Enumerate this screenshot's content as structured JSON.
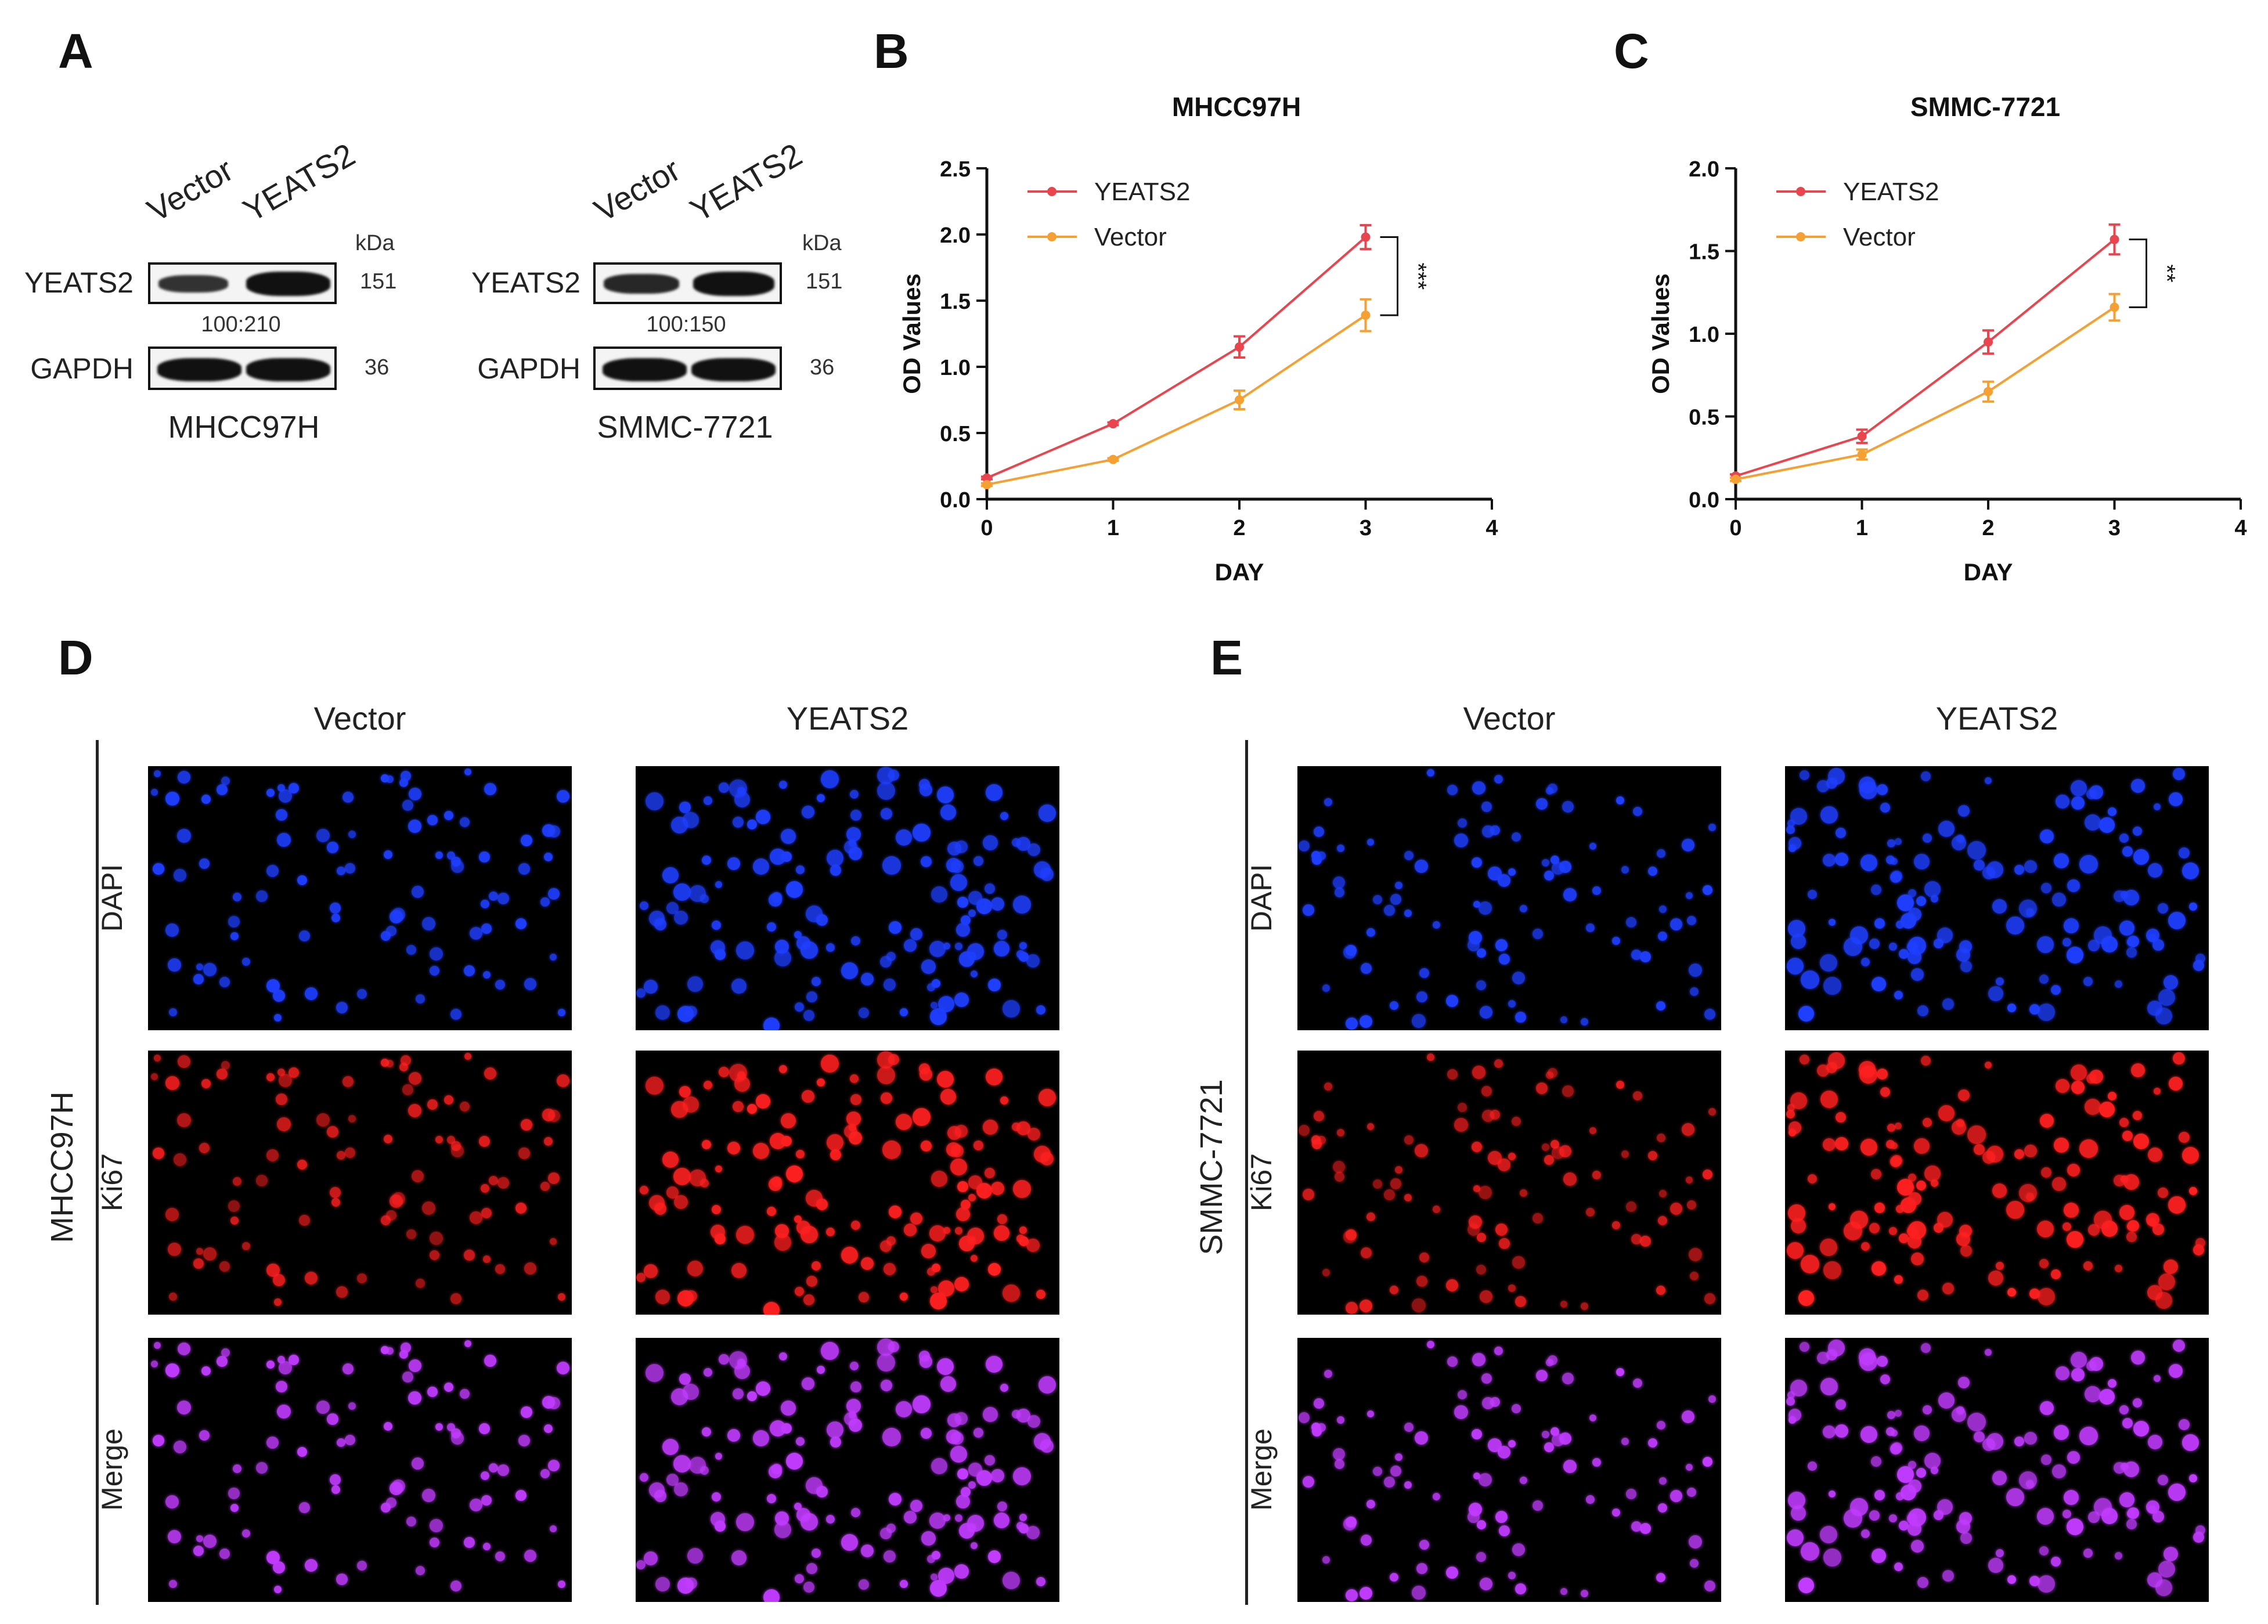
{
  "panel_letters": {
    "a": "A",
    "b": "B",
    "c": "C",
    "d": "D",
    "e": "E"
  },
  "western_blot": {
    "kda_label": "kDa",
    "lanes": [
      "Vector",
      "YEATS2"
    ],
    "rows": [
      {
        "protein": "YEATS2",
        "kda": "151"
      },
      {
        "protein": "GAPDH",
        "kda": "36"
      }
    ],
    "blots": [
      {
        "cell_line": "MHCC97H",
        "ratio": "100:210"
      },
      {
        "cell_line": "SMMC-7721",
        "ratio": "100:150"
      }
    ]
  },
  "chart_data": [
    {
      "type": "line",
      "title": "MHCC97H",
      "xlabel": "DAY",
      "ylabel": "OD Values",
      "xlim": [
        0,
        4
      ],
      "ylim": [
        0,
        2.5
      ],
      "xticks": [
        "0",
        "1",
        "2",
        "3",
        "4"
      ],
      "yticks": [
        "0.0",
        "0.5",
        "1.0",
        "1.5",
        "2.0",
        "2.5"
      ],
      "significance": "***",
      "series": [
        {
          "name": "YEATS2",
          "color": "#e8454f",
          "x": [
            0,
            1,
            2,
            3
          ],
          "y": [
            0.16,
            0.57,
            1.15,
            1.98
          ],
          "err": [
            0.01,
            0.01,
            0.08,
            0.09
          ]
        },
        {
          "name": "Vector",
          "color": "#f5a033",
          "x": [
            0,
            1,
            2,
            3
          ],
          "y": [
            0.11,
            0.3,
            0.75,
            1.39
          ],
          "err": [
            0.01,
            0.01,
            0.07,
            0.12
          ]
        }
      ]
    },
    {
      "type": "line",
      "title": "SMMC-7721",
      "xlabel": "DAY",
      "ylabel": "OD Values",
      "xlim": [
        0,
        4
      ],
      "ylim": [
        0,
        2.0
      ],
      "xticks": [
        "0",
        "1",
        "2",
        "3",
        "4"
      ],
      "yticks": [
        "0.0",
        "0.5",
        "1.0",
        "1.5",
        "2.0"
      ],
      "significance": "**",
      "series": [
        {
          "name": "YEATS2",
          "color": "#e8454f",
          "x": [
            0,
            1,
            2,
            3
          ],
          "y": [
            0.14,
            0.38,
            0.95,
            1.57
          ],
          "err": [
            0.01,
            0.04,
            0.07,
            0.09
          ]
        },
        {
          "name": "Vector",
          "color": "#f5a033",
          "x": [
            0,
            1,
            2,
            3
          ],
          "y": [
            0.12,
            0.27,
            0.65,
            1.16
          ],
          "err": [
            0.01,
            0.03,
            0.06,
            0.08
          ]
        }
      ]
    }
  ],
  "immunofluorescence": {
    "columns": [
      "Vector",
      "YEATS2"
    ],
    "rows": [
      "DAPI",
      "Ki67",
      "Merge"
    ],
    "groups": [
      {
        "cell_line": "MHCC97H"
      },
      {
        "cell_line": "SMMC-7721"
      }
    ]
  },
  "colors": {
    "dapi": "#1f3fff",
    "ki67": "#ff2020",
    "merge": "#c23cff",
    "yeats2": "#e8454f",
    "vector": "#f5a033"
  }
}
